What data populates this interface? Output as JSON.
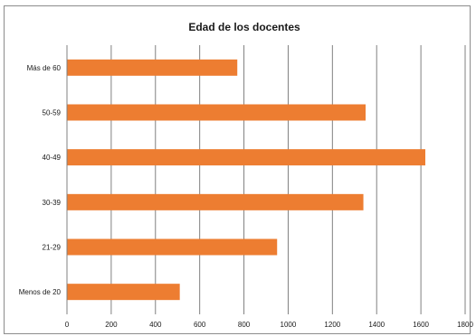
{
  "chart_data": {
    "type": "bar",
    "orientation": "horizontal",
    "title": "Edad de los docentes",
    "xlabel": "",
    "ylabel": "",
    "categories": [
      "Más de 60",
      "50-59",
      "40-49",
      "30-39",
      "21-29",
      "Menos de 20"
    ],
    "values": [
      770,
      1350,
      1620,
      1340,
      950,
      510
    ],
    "xlim": [
      0,
      1800
    ],
    "xticks": [
      0,
      200,
      400,
      600,
      800,
      1000,
      1200,
      1400,
      1600,
      1800
    ],
    "grid": "vertical",
    "bar_color": "#ED7D31",
    "grid_color": "#808080"
  }
}
